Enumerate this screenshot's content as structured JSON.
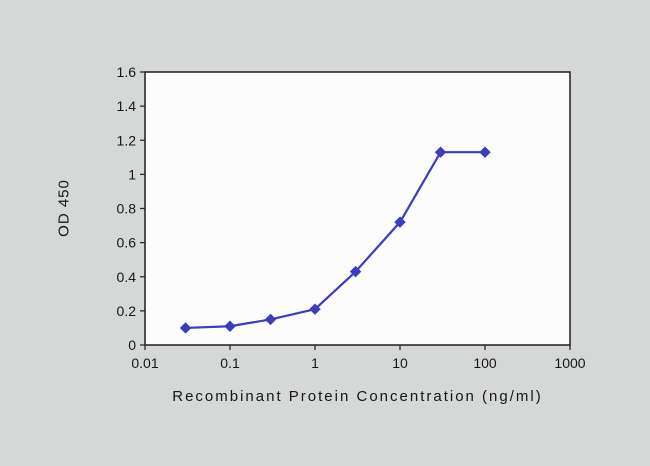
{
  "chart_data": {
    "type": "line",
    "x_scale": "log",
    "x": [
      0.03,
      0.1,
      0.3,
      1,
      3,
      10,
      30,
      100
    ],
    "y": [
      0.1,
      0.11,
      0.15,
      0.21,
      0.43,
      0.72,
      1.13,
      1.13
    ],
    "marker": "diamond",
    "line_color": "#3c3cc0",
    "xlabel": "Recombinant Protein Concentration (ng/ml)",
    "ylabel": "OD 450",
    "xlim": [
      0.01,
      1000
    ],
    "ylim": [
      0,
      1.6
    ],
    "x_ticks": [
      0.01,
      0.1,
      1,
      10,
      100,
      1000
    ],
    "x_tick_labels": [
      "0.01",
      "0.1",
      "1",
      "10",
      "100",
      "1000"
    ],
    "y_ticks": [
      0,
      0.2,
      0.4,
      0.6,
      0.8,
      1,
      1.2,
      1.4,
      1.6
    ],
    "y_tick_labels": [
      "0",
      "0.2",
      "0.4",
      "0.6",
      "0.8",
      "1",
      "1.2",
      "1.4",
      "1.6"
    ],
    "grid": false,
    "legend": "none",
    "plot_background": "#fcfcfc",
    "frame_color": "#2a2a2a"
  }
}
